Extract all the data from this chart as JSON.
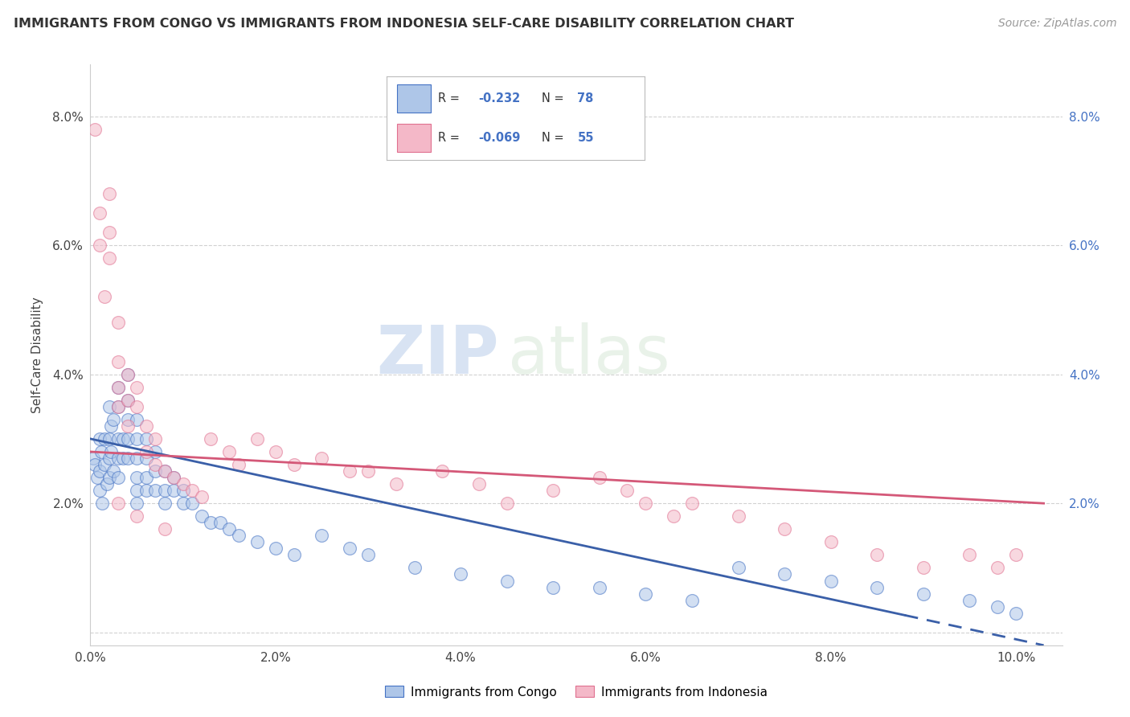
{
  "title": "IMMIGRANTS FROM CONGO VS IMMIGRANTS FROM INDONESIA SELF-CARE DISABILITY CORRELATION CHART",
  "source": "Source: ZipAtlas.com",
  "ylabel": "Self-Care Disability",
  "xlim": [
    0.0,
    0.105
  ],
  "ylim": [
    -0.002,
    0.088
  ],
  "xticks": [
    0.0,
    0.02,
    0.04,
    0.06,
    0.08,
    0.1
  ],
  "yticks": [
    0.0,
    0.02,
    0.04,
    0.06,
    0.08
  ],
  "xtick_labels": [
    "0.0%",
    "2.0%",
    "4.0%",
    "6.0%",
    "8.0%",
    "10.0%"
  ],
  "ytick_labels_left": [
    "",
    "2.0%",
    "4.0%",
    "6.0%",
    "8.0%"
  ],
  "ytick_labels_right": [
    "",
    "2.0%",
    "4.0%",
    "6.0%",
    "8.0%"
  ],
  "color_congo": "#aec6e8",
  "color_indonesia": "#f4b8c8",
  "edge_color_congo": "#4472c4",
  "edge_color_indonesia": "#e07090",
  "trend_color_congo": "#3a5fa8",
  "trend_color_indonesia": "#d45878",
  "watermark_zip": "ZIP",
  "watermark_atlas": "atlas",
  "background_color": "#ffffff",
  "congo_x": [
    0.0003,
    0.0005,
    0.0007,
    0.001,
    0.001,
    0.001,
    0.0012,
    0.0013,
    0.0015,
    0.0015,
    0.0018,
    0.002,
    0.002,
    0.002,
    0.002,
    0.0022,
    0.0022,
    0.0025,
    0.0025,
    0.003,
    0.003,
    0.003,
    0.003,
    0.003,
    0.0035,
    0.0035,
    0.004,
    0.004,
    0.004,
    0.004,
    0.004,
    0.005,
    0.005,
    0.005,
    0.005,
    0.005,
    0.005,
    0.006,
    0.006,
    0.006,
    0.006,
    0.007,
    0.007,
    0.007,
    0.008,
    0.008,
    0.008,
    0.009,
    0.009,
    0.01,
    0.01,
    0.011,
    0.012,
    0.013,
    0.014,
    0.015,
    0.016,
    0.018,
    0.02,
    0.022,
    0.025,
    0.028,
    0.03,
    0.035,
    0.04,
    0.045,
    0.05,
    0.055,
    0.06,
    0.065,
    0.07,
    0.075,
    0.08,
    0.085,
    0.09,
    0.095,
    0.098,
    0.1
  ],
  "congo_y": [
    0.027,
    0.026,
    0.024,
    0.03,
    0.025,
    0.022,
    0.028,
    0.02,
    0.03,
    0.026,
    0.023,
    0.035,
    0.03,
    0.027,
    0.024,
    0.032,
    0.028,
    0.033,
    0.025,
    0.038,
    0.035,
    0.03,
    0.027,
    0.024,
    0.03,
    0.027,
    0.04,
    0.036,
    0.033,
    0.03,
    0.027,
    0.033,
    0.03,
    0.027,
    0.024,
    0.022,
    0.02,
    0.03,
    0.027,
    0.024,
    0.022,
    0.028,
    0.025,
    0.022,
    0.025,
    0.022,
    0.02,
    0.024,
    0.022,
    0.022,
    0.02,
    0.02,
    0.018,
    0.017,
    0.017,
    0.016,
    0.015,
    0.014,
    0.013,
    0.012,
    0.015,
    0.013,
    0.012,
    0.01,
    0.009,
    0.008,
    0.007,
    0.007,
    0.006,
    0.005,
    0.01,
    0.009,
    0.008,
    0.007,
    0.006,
    0.005,
    0.004,
    0.003
  ],
  "indonesia_x": [
    0.0005,
    0.001,
    0.001,
    0.0015,
    0.002,
    0.002,
    0.002,
    0.003,
    0.003,
    0.003,
    0.003,
    0.004,
    0.004,
    0.004,
    0.005,
    0.005,
    0.006,
    0.006,
    0.007,
    0.007,
    0.008,
    0.009,
    0.01,
    0.011,
    0.012,
    0.013,
    0.015,
    0.016,
    0.018,
    0.02,
    0.022,
    0.025,
    0.028,
    0.03,
    0.033,
    0.038,
    0.042,
    0.045,
    0.05,
    0.055,
    0.058,
    0.06,
    0.063,
    0.065,
    0.07,
    0.075,
    0.08,
    0.085,
    0.09,
    0.095,
    0.098,
    0.1,
    0.003,
    0.005,
    0.008
  ],
  "indonesia_y": [
    0.078,
    0.065,
    0.06,
    0.052,
    0.068,
    0.062,
    0.058,
    0.048,
    0.042,
    0.038,
    0.035,
    0.04,
    0.036,
    0.032,
    0.038,
    0.035,
    0.032,
    0.028,
    0.03,
    0.026,
    0.025,
    0.024,
    0.023,
    0.022,
    0.021,
    0.03,
    0.028,
    0.026,
    0.03,
    0.028,
    0.026,
    0.027,
    0.025,
    0.025,
    0.023,
    0.025,
    0.023,
    0.02,
    0.022,
    0.024,
    0.022,
    0.02,
    0.018,
    0.02,
    0.018,
    0.016,
    0.014,
    0.012,
    0.01,
    0.012,
    0.01,
    0.012,
    0.02,
    0.018,
    0.016
  ],
  "trend_congo_x0": 0.0,
  "trend_congo_y0": 0.03,
  "trend_congo_x1": 0.103,
  "trend_congo_y1": -0.002,
  "trend_indonesia_x0": 0.0,
  "trend_indonesia_y0": 0.028,
  "trend_indonesia_x1": 0.103,
  "trend_indonesia_y1": 0.02
}
